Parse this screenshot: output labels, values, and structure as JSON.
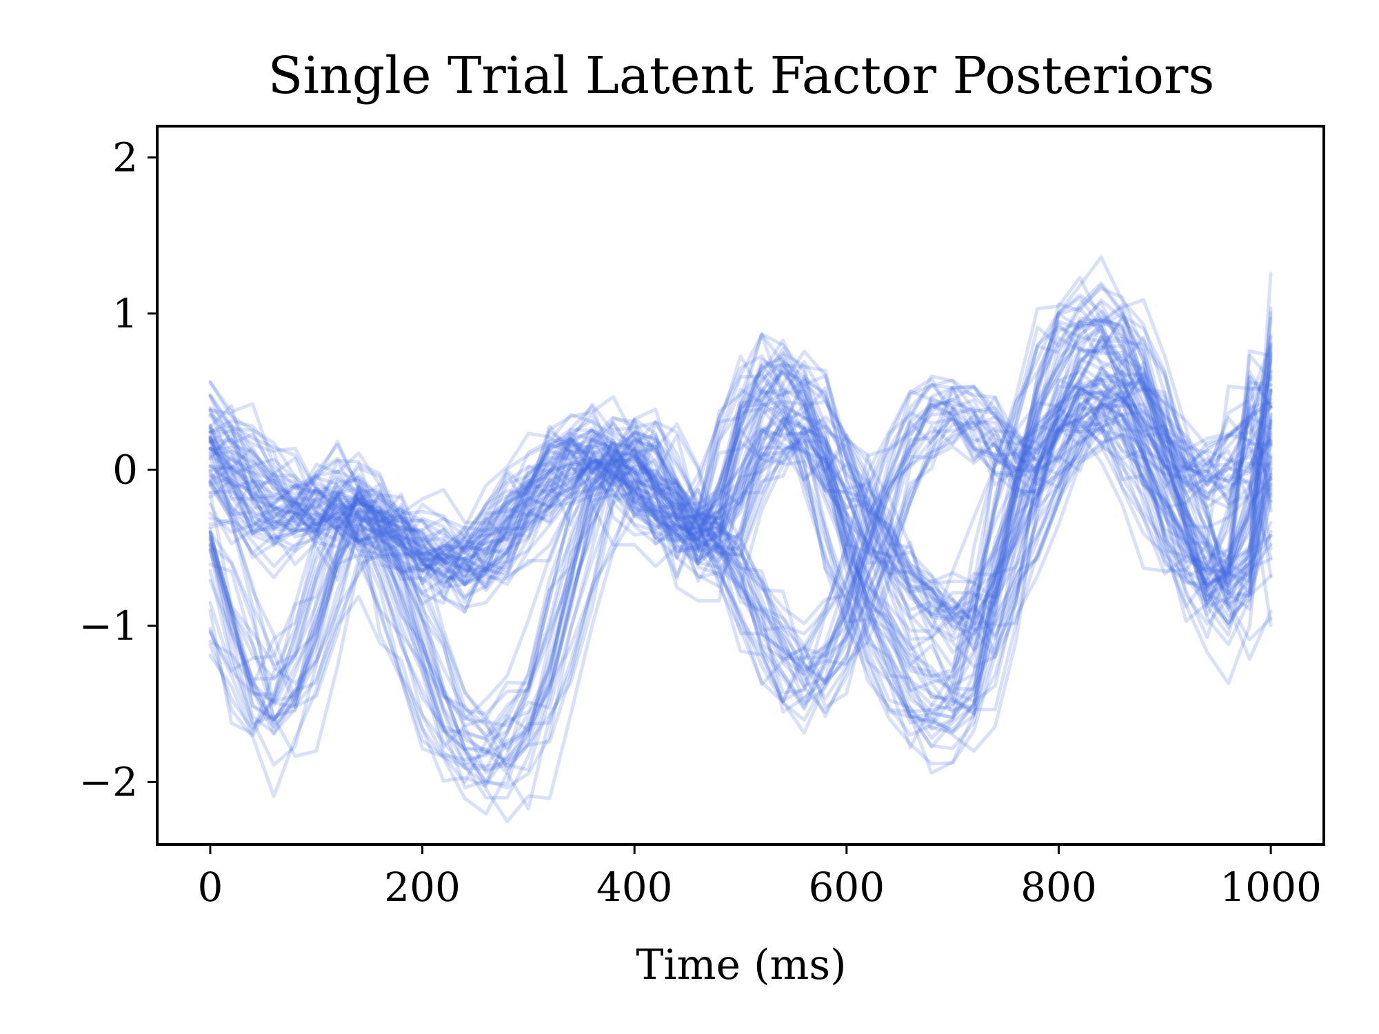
{
  "chart_data": {
    "type": "line",
    "title": "Single Trial Latent Factor Posteriors",
    "xlabel": "Time (ms)",
    "ylabel": "",
    "xlim": [
      -50,
      1050
    ],
    "ylim": [
      -2.4,
      2.2
    ],
    "xticks": [
      0,
      200,
      400,
      600,
      800,
      1000
    ],
    "yticks": [
      2,
      1,
      0,
      -1,
      -2
    ],
    "xtick_labels": [
      "0",
      "200",
      "400",
      "600",
      "800",
      "1000"
    ],
    "ytick_labels": [
      "2",
      "1",
      "0",
      "−1",
      "−2"
    ],
    "grid": false,
    "legend": "none",
    "line_color": "#4169e1",
    "line_opacity": 0.2,
    "trial_count_per_factor": 30,
    "x": [
      0,
      20,
      40,
      60,
      80,
      100,
      120,
      140,
      160,
      180,
      200,
      220,
      240,
      260,
      280,
      300,
      320,
      340,
      360,
      380,
      400,
      420,
      440,
      460,
      480,
      500,
      520,
      540,
      560,
      580,
      600,
      620,
      640,
      660,
      680,
      700,
      720,
      740,
      760,
      780,
      800,
      820,
      840,
      860,
      880,
      900,
      920,
      940,
      960,
      980,
      1000
    ],
    "series": [
      {
        "values": [
          -0.5,
          -1.0,
          -1.4,
          -1.55,
          -1.4,
          -1.0,
          -0.55,
          -0.3,
          -0.45,
          -0.8,
          -1.2,
          -1.55,
          -1.75,
          -1.85,
          -1.8,
          -1.65,
          -1.3,
          -0.8,
          -0.3,
          0.0,
          0.15,
          0.1,
          -0.2,
          -0.5,
          -0.3,
          0.25,
          0.55,
          0.6,
          0.45,
          0.0,
          -0.5,
          -0.9,
          -1.2,
          -1.4,
          -1.55,
          -1.6,
          -1.4,
          -0.8,
          -0.1,
          0.4,
          0.75,
          0.9,
          0.95,
          0.85,
          0.55,
          0.1,
          -0.35,
          -0.75,
          -0.9,
          -0.7,
          0.55
        ]
      },
      {
        "values": [
          0.25,
          0.15,
          0.0,
          -0.15,
          -0.25,
          -0.3,
          -0.3,
          -0.3,
          -0.35,
          -0.45,
          -0.55,
          -0.65,
          -0.65,
          -0.55,
          -0.4,
          -0.25,
          -0.1,
          0.05,
          0.1,
          0.0,
          -0.2,
          -0.3,
          -0.4,
          -0.45,
          -0.35,
          -0.1,
          0.15,
          0.25,
          0.25,
          0.1,
          -0.1,
          -0.35,
          -0.6,
          -0.75,
          -0.9,
          -1.0,
          -1.0,
          -0.8,
          -0.45,
          -0.1,
          0.2,
          0.35,
          0.35,
          0.2,
          -0.05,
          -0.3,
          -0.55,
          -0.7,
          -0.65,
          -0.35,
          0.4
        ]
      },
      {
        "values": [
          0.1,
          -0.15,
          -0.3,
          -0.35,
          -0.3,
          -0.2,
          -0.1,
          -0.15,
          -0.3,
          -0.45,
          -0.55,
          -0.6,
          -0.55,
          -0.45,
          -0.3,
          -0.15,
          0.0,
          0.1,
          0.15,
          0.1,
          0.0,
          -0.15,
          -0.3,
          -0.4,
          -0.5,
          -0.7,
          -0.95,
          -1.2,
          -1.3,
          -1.2,
          -0.9,
          -0.5,
          -0.1,
          0.2,
          0.35,
          0.4,
          0.35,
          0.2,
          0.05,
          0.05,
          0.25,
          0.5,
          0.6,
          0.55,
          0.4,
          0.2,
          0.05,
          -0.05,
          0.0,
          0.15,
          0.35
        ]
      }
    ]
  }
}
